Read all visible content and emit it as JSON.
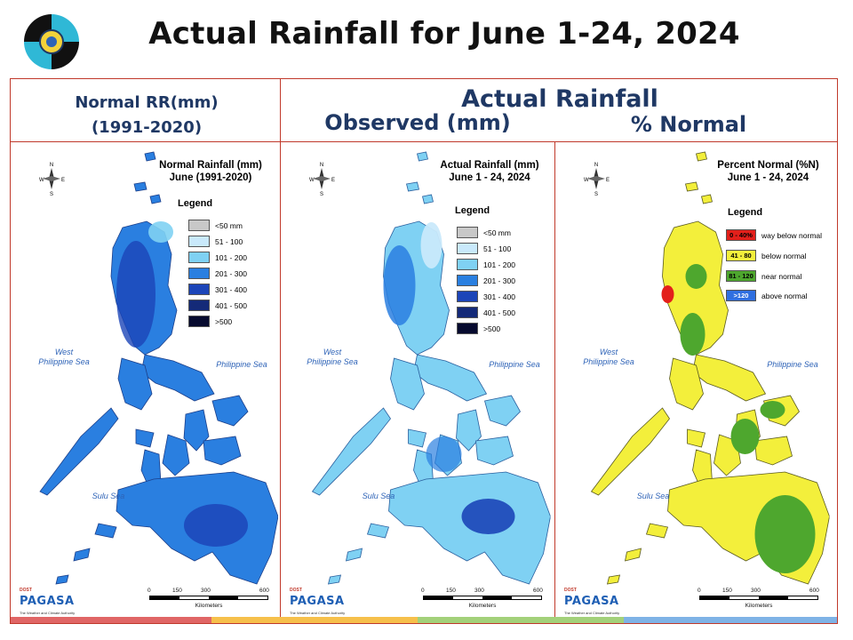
{
  "title": "Actual Rainfall for June 1-24, 2024",
  "headers": {
    "normal_line1": "Normal RR(mm)",
    "normal_line2": "(1991-2020)",
    "actual": "Actual Rainfall",
    "observed": "Observed (mm)",
    "percent": "% Normal"
  },
  "seas": {
    "west_line1": "West",
    "west_line2": "Philippine Sea",
    "east": "Philippine Sea",
    "sulu": "Sulu Sea"
  },
  "compass": {
    "n": "N",
    "e": "E",
    "s": "S",
    "w": "W"
  },
  "scale_bar": {
    "ticks": [
      "0",
      "150",
      "300",
      "600"
    ],
    "unit": "Kilometers"
  },
  "brand": {
    "name": "PAGASA",
    "top_text": "DOST",
    "tagline": "The Weather and Climate Authority"
  },
  "panels": [
    {
      "title_line1": "Normal Rainfall (mm)",
      "title_line2": "June (1991-2020)",
      "legend_title": "Legend",
      "legend": [
        {
          "label": "<50 mm",
          "color": "#c8c8c8"
        },
        {
          "label": "51 - 100",
          "color": "#c9e9fb"
        },
        {
          "label": "101 - 200",
          "color": "#7fd1f3"
        },
        {
          "label": "201 - 300",
          "color": "#2a7fe0"
        },
        {
          "label": "301 - 400",
          "color": "#1c45b8"
        },
        {
          "label": "401 - 500",
          "color": "#142a78"
        },
        {
          "label": ">500",
          "color": "#060a2e"
        }
      ]
    },
    {
      "title_line1": "Actual Rainfall (mm)",
      "title_line2": "June 1 - 24, 2024",
      "legend_title": "Legend",
      "legend": [
        {
          "label": "<50 mm",
          "color": "#c8c8c8"
        },
        {
          "label": "51 - 100",
          "color": "#c9e9fb"
        },
        {
          "label": "101 - 200",
          "color": "#7fd1f3"
        },
        {
          "label": "201 - 300",
          "color": "#2a7fe0"
        },
        {
          "label": "301 - 400",
          "color": "#1c45b8"
        },
        {
          "label": "401 - 500",
          "color": "#142a78"
        },
        {
          "label": ">500",
          "color": "#060a2e"
        }
      ]
    },
    {
      "title_line1": "Percent Normal (%N)",
      "title_line2": "June 1 - 24, 2024",
      "legend_title": "Legend",
      "legend": [
        {
          "range": "0 - 40%",
          "label": "way below normal",
          "color": "#e3201b"
        },
        {
          "range": "41 - 80",
          "label": "below normal",
          "color": "#f3ef3b"
        },
        {
          "range": "81 - 120",
          "label": "near normal",
          "color": "#4ea72e"
        },
        {
          "range": ">120",
          "label": "above normal",
          "color": "#2f6fe0"
        }
      ]
    }
  ],
  "colors": {
    "frame": "#c0392b",
    "header_text": "#1f3864",
    "sea_label": "#2e63b7",
    "stripe": [
      "#e06666",
      "#f6c04b",
      "#a3d17a",
      "#7fb3e6"
    ]
  }
}
